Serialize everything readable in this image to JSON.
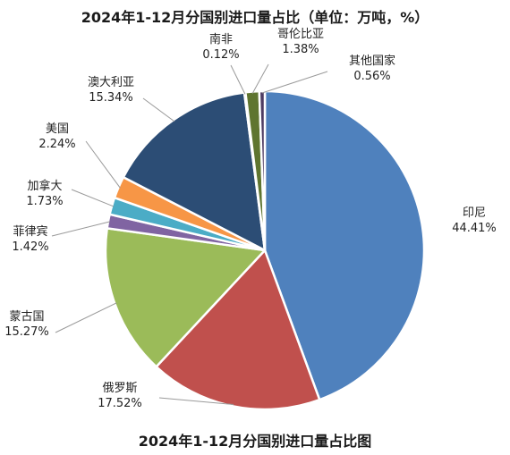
{
  "title": "2024年1-12月分国别进口量占比（单位：万吨，%）",
  "caption": "2024年1-12月分国别进口量占比图",
  "chart_data": {
    "type": "pie",
    "unit": "%",
    "slices": [
      {
        "name": "印尼",
        "value": 44.41,
        "label": "44.41%",
        "color": "#4F81BD"
      },
      {
        "name": "俄罗斯",
        "value": 17.52,
        "label": "17.52%",
        "color": "#C0504D"
      },
      {
        "name": "蒙古国",
        "value": 15.27,
        "label": "15.27%",
        "color": "#9BBB59"
      },
      {
        "name": "菲律宾",
        "value": 1.42,
        "label": "1.42%",
        "color": "#8064A2"
      },
      {
        "name": "加拿大",
        "value": 1.73,
        "label": "1.73%",
        "color": "#4BACC6"
      },
      {
        "name": "美国",
        "value": 2.24,
        "label": "2.24%",
        "color": "#F79646"
      },
      {
        "name": "澳大利亚",
        "value": 15.34,
        "label": "15.34%",
        "color": "#2C4D75"
      },
      {
        "name": "南非",
        "value": 0.12,
        "label": "0.12%",
        "color": "#772C2A"
      },
      {
        "name": "哥伦比亚",
        "value": 1.38,
        "label": "1.38%",
        "color": "#5F7530"
      },
      {
        "name": "其他国家",
        "value": 0.56,
        "label": "0.56%",
        "color": "#4D3B62"
      }
    ]
  }
}
